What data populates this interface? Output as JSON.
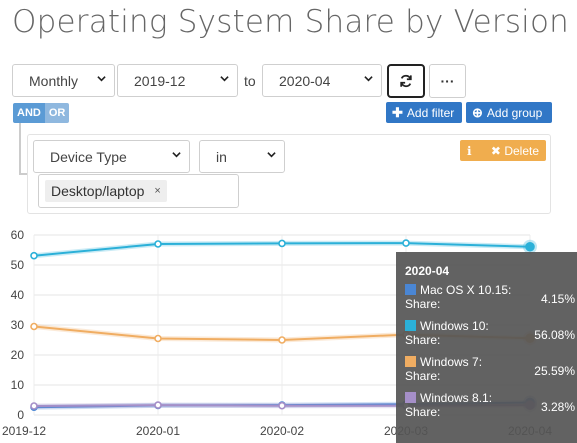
{
  "title": "Operating System Share by Version",
  "period_select": {
    "value": "Monthly"
  },
  "from_select": {
    "value": "2019-12"
  },
  "to_label": "to",
  "to_select": {
    "value": "2020-04"
  },
  "more_button": {
    "label": "···"
  },
  "logic": {
    "and_label": "AND",
    "or_label": "OR"
  },
  "add_filter": {
    "label": "Add filter"
  },
  "add_group": {
    "label": "Add group"
  },
  "rule": {
    "field": "Device Type",
    "operator": "in",
    "tags": [
      "Desktop/laptop"
    ],
    "delete_label": "Delete"
  },
  "colors": {
    "accent": "#3177c6",
    "warning": "#f0ad4e",
    "mac": "#4a86d4",
    "win10": "#2bb0d8",
    "win7": "#f0ad62",
    "win81": "#a58fc8"
  },
  "chart_data": {
    "type": "line",
    "categories": [
      "2019-12",
      "2020-01",
      "2020-02",
      "2020-03",
      "2020-04"
    ],
    "ylim": [
      0,
      60
    ],
    "yticks": [
      0,
      10,
      20,
      30,
      40,
      50,
      60
    ],
    "grid": true,
    "series": [
      {
        "name": "Mac OS X 10.15",
        "color": "#4a86d4",
        "values": [
          2.6,
          3.2,
          3.3,
          3.6,
          4.15
        ]
      },
      {
        "name": "Windows 10",
        "color": "#2bb0d8",
        "values": [
          53.1,
          57.0,
          57.2,
          57.3,
          56.08
        ]
      },
      {
        "name": "Windows 7",
        "color": "#f0ad62",
        "values": [
          29.5,
          25.5,
          25.0,
          26.8,
          25.59
        ]
      },
      {
        "name": "Windows 8.1",
        "color": "#a58fc8",
        "values": [
          3.0,
          3.3,
          3.1,
          3.1,
          3.28
        ]
      }
    ]
  },
  "tooltip": {
    "header": "2020-04",
    "share_label": "Share:",
    "rows": [
      {
        "name": "Mac OS X 10.15:",
        "value": "4.15%"
      },
      {
        "name": "Windows 10:",
        "value": "56.08%"
      },
      {
        "name": "Windows 7:",
        "value": "25.59%"
      },
      {
        "name": "Windows 8.1:",
        "value": "3.28%"
      }
    ]
  }
}
